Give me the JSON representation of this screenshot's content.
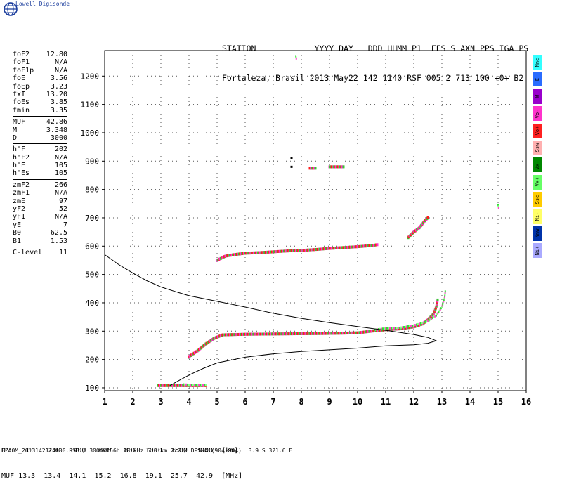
{
  "brand": "Lowell Digisonde",
  "header": {
    "line1": "STATION            YYYY DAY   DDD HHMM P1  FFS S AXN PPS IGA PS",
    "line2": "Fortaleza, Brasil 2013 May22 142 1140 RSF 005 2 713 100 +0+ B2"
  },
  "params": [
    {
      "k": "foF2",
      "v": "12.80"
    },
    {
      "k": "foF1",
      "v": "N/A"
    },
    {
      "k": "foF1p",
      "v": "N/A"
    },
    {
      "k": "foE",
      "v": "3.56"
    },
    {
      "k": "foEp",
      "v": "3.23"
    },
    {
      "k": "fxI",
      "v": "13.20"
    },
    {
      "k": "foEs",
      "v": "3.85"
    },
    {
      "k": "fmin",
      "v": "3.35"
    },
    {
      "k": "MUF",
      "v": "42.86",
      "sep": true
    },
    {
      "k": "M",
      "v": "3.348"
    },
    {
      "k": "D",
      "v": "3000"
    },
    {
      "k": "h'F",
      "v": "202",
      "sep": true
    },
    {
      "k": "h'F2",
      "v": "N/A"
    },
    {
      "k": "h'E",
      "v": "105"
    },
    {
      "k": "h'Es",
      "v": "105"
    },
    {
      "k": "zmF2",
      "v": "266",
      "sep": true
    },
    {
      "k": "zmF1",
      "v": "N/A"
    },
    {
      "k": "zmE",
      "v": "97"
    },
    {
      "k": "yF2",
      "v": "52"
    },
    {
      "k": "yF1",
      "v": "N/A"
    },
    {
      "k": "yE",
      "v": "7"
    },
    {
      "k": "B0",
      "v": "62.5"
    },
    {
      "k": "B1",
      "v": "1.53"
    },
    {
      "k": "C-level",
      "v": "11",
      "sep": true
    }
  ],
  "legend": [
    {
      "label": "Nne",
      "color": "#33ffff"
    },
    {
      "label": "E",
      "color": "#2a6cff"
    },
    {
      "label": "W",
      "color": "#9900cc"
    },
    {
      "label": "Vo-",
      "color": "#ff33cc"
    },
    {
      "label": "Vo+",
      "color": "#ff2020"
    },
    {
      "label": "Ssw",
      "color": "#ffb0b0"
    },
    {
      "label": "Vx-",
      "color": "#008800"
    },
    {
      "label": "Vx+",
      "color": "#66ff66"
    },
    {
      "label": "Sse",
      "color": "#ffcc00"
    },
    {
      "label": "Ni-",
      "color": "#ffff66"
    },
    {
      "label": "Nnw",
      "color": "#0033aa"
    },
    {
      "label": "Ni+",
      "color": "#aaaaff"
    }
  ],
  "muf_table": {
    "D_label": "D",
    "D": [
      "100",
      "200",
      "400",
      "600",
      "800",
      "1000",
      "1500",
      "3000"
    ],
    "D_unit": "[km]",
    "MUF_label": "MUF",
    "MUF": [
      "13.3",
      "13.4",
      "14.1",
      "15.2",
      "16.8",
      "19.1",
      "25.7",
      "42.9"
    ],
    "MUF_unit": "[MHz]"
  },
  "footer": "FZA0M_2013142114000.RSF / 300fx256h 50 kHz 5.0 km 2x2 / DPS-4 (904-904)  3.9 S 321.6 E",
  "chart_data": {
    "type": "scatter",
    "title": "",
    "xlabel": "",
    "ylabel": "",
    "xlim": [
      1,
      16
    ],
    "ylim": [
      90,
      1290
    ],
    "xticks": [
      1,
      2,
      3,
      4,
      5,
      6,
      7,
      8,
      9,
      10,
      11,
      12,
      13,
      14,
      15,
      16
    ],
    "yticks": [
      100,
      200,
      300,
      400,
      500,
      600,
      700,
      800,
      900,
      1000,
      1100,
      1200
    ],
    "grid": "dotted",
    "series": [
      {
        "name": "O-mode trace (Vo+/Vo-/Vx+)",
        "segments": [
          [
            [
              4.0,
              210
            ],
            [
              4.3,
              230
            ],
            [
              4.6,
              255
            ],
            [
              4.9,
              275
            ],
            [
              5.2,
              287
            ],
            [
              6,
              289
            ],
            [
              7,
              290
            ],
            [
              8,
              291
            ],
            [
              9,
              292
            ],
            [
              10,
              294
            ],
            [
              10.5,
              300
            ],
            [
              11,
              305
            ],
            [
              11.5,
              308
            ],
            [
              12,
              315
            ],
            [
              12.3,
              325
            ],
            [
              12.5,
              340
            ],
            [
              12.7,
              360
            ],
            [
              12.8,
              385
            ],
            [
              12.85,
              410
            ]
          ],
          [
            [
              5.0,
              550
            ],
            [
              5.3,
              565
            ],
            [
              5.6,
              570
            ],
            [
              6,
              575
            ],
            [
              6.5,
              577
            ],
            [
              7,
              580
            ],
            [
              7.5,
              583
            ],
            [
              8,
              585
            ],
            [
              8.5,
              588
            ],
            [
              9,
              592
            ],
            [
              9.5,
              595
            ],
            [
              10,
              598
            ],
            [
              10.5,
              602
            ],
            [
              10.7,
              605
            ]
          ],
          [
            [
              11.8,
              630
            ],
            [
              12,
              650
            ],
            [
              12.2,
              665
            ],
            [
              12.4,
              690
            ],
            [
              12.5,
              700
            ]
          ],
          [
            [
              8.3,
              875
            ],
            [
              8.5,
              875
            ]
          ],
          [
            [
              9.0,
              880
            ],
            [
              9.5,
              880
            ]
          ],
          [
            [
              2.9,
              108
            ],
            [
              3.5,
              108
            ],
            [
              4.2,
              108
            ],
            [
              4.6,
              108
            ]
          ]
        ]
      },
      {
        "name": "X-mode trace (Vx+)",
        "segments": [
          [
            [
              10.6,
              305
            ],
            [
              11,
              310
            ],
            [
              11.5,
              312
            ],
            [
              12,
              320
            ],
            [
              12.5,
              335
            ],
            [
              12.8,
              355
            ],
            [
              13,
              385
            ],
            [
              13.1,
              420
            ],
            [
              13.12,
              440
            ]
          ],
          [
            [
              3.8,
              112
            ],
            [
              4.2,
              110
            ],
            [
              4.6,
              110
            ]
          ],
          [
            [
              15.0,
              745
            ],
            [
              15.02,
              735
            ]
          ],
          [
            [
              7.8,
              1270
            ],
            [
              7.82,
              1262
            ]
          ]
        ]
      },
      {
        "name": "Electron density profile",
        "points": [
          [
            1.0,
            570
          ],
          [
            1.5,
            535
          ],
          [
            2.0,
            505
          ],
          [
            2.5,
            478
          ],
          [
            3.0,
            456
          ],
          [
            3.5,
            440
          ],
          [
            4.0,
            425
          ],
          [
            5.0,
            405
          ],
          [
            6.0,
            385
          ],
          [
            7.0,
            363
          ],
          [
            8.0,
            345
          ],
          [
            9.0,
            330
          ],
          [
            10.0,
            316
          ],
          [
            11.0,
            303
          ],
          [
            12.0,
            288
          ],
          [
            12.5,
            278
          ],
          [
            12.8,
            266
          ],
          [
            12.5,
            257
          ],
          [
            12.0,
            252
          ],
          [
            11.0,
            248
          ],
          [
            10.0,
            240
          ],
          [
            9.0,
            234
          ],
          [
            8.0,
            228
          ],
          [
            7.0,
            220
          ],
          [
            6.0,
            208
          ],
          [
            5.0,
            188
          ],
          [
            4.5,
            168
          ],
          [
            4.0,
            145
          ],
          [
            3.5,
            118
          ],
          [
            3.3,
            106
          ]
        ]
      }
    ],
    "markers": [
      {
        "x": 7.65,
        "y": 910
      },
      {
        "x": 7.65,
        "y": 880
      }
    ]
  }
}
